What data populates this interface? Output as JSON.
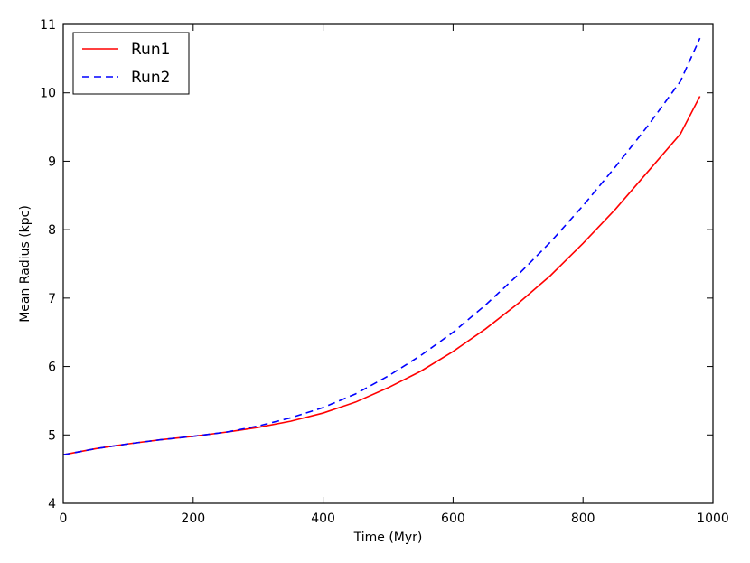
{
  "chart_data": {
    "type": "line",
    "title": "",
    "xlabel": "Time (Myr)",
    "ylabel": "Mean Radius (kpc)",
    "xlim": [
      0,
      1000
    ],
    "ylim": [
      4,
      11
    ],
    "xticks": [
      0,
      200,
      400,
      600,
      800,
      1000
    ],
    "yticks": [
      4,
      5,
      6,
      7,
      8,
      9,
      10,
      11
    ],
    "grid": false,
    "legend_position": "top-left",
    "series": [
      {
        "name": "Run1",
        "color": "#ff0000",
        "style": "solid",
        "x": [
          0,
          50,
          100,
          150,
          200,
          250,
          300,
          350,
          400,
          450,
          500,
          550,
          600,
          650,
          700,
          750,
          800,
          850,
          900,
          950,
          980
        ],
        "y": [
          4.71,
          4.8,
          4.87,
          4.93,
          4.98,
          5.04,
          5.11,
          5.2,
          5.32,
          5.48,
          5.69,
          5.93,
          6.22,
          6.55,
          6.92,
          7.33,
          7.8,
          8.3,
          8.85,
          9.4,
          9.95
        ]
      },
      {
        "name": "Run2",
        "color": "#0000ff",
        "style": "dashed",
        "x": [
          0,
          50,
          100,
          150,
          200,
          250,
          300,
          350,
          400,
          450,
          500,
          550,
          600,
          650,
          700,
          750,
          800,
          850,
          900,
          950,
          980
        ],
        "y": [
          4.71,
          4.8,
          4.87,
          4.93,
          4.98,
          5.04,
          5.13,
          5.25,
          5.4,
          5.6,
          5.86,
          6.16,
          6.5,
          6.9,
          7.34,
          7.82,
          8.35,
          8.92,
          9.52,
          10.17,
          10.8
        ]
      }
    ]
  }
}
